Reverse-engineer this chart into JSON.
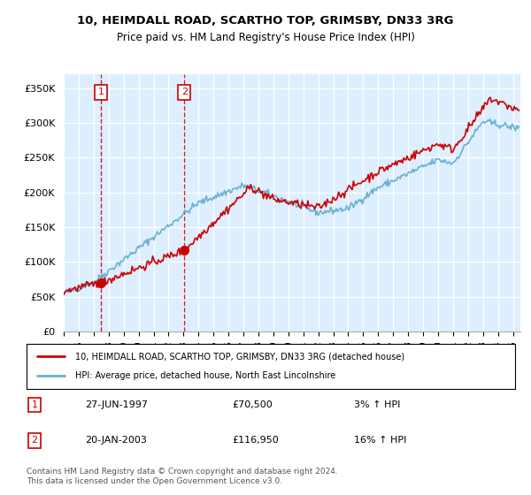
{
  "title_line1": "10, HEIMDALL ROAD, SCARTHO TOP, GRIMSBY, DN33 3RG",
  "title_line2": "Price paid vs. HM Land Registry's House Price Index (HPI)",
  "ylabel_ticks": [
    "£0",
    "£50K",
    "£100K",
    "£150K",
    "£200K",
    "£250K",
    "£300K",
    "£350K"
  ],
  "ytick_values": [
    0,
    50000,
    100000,
    150000,
    200000,
    250000,
    300000,
    350000
  ],
  "ylim": [
    0,
    370000
  ],
  "xlim_start": 1995.0,
  "xlim_end": 2025.5,
  "purchase1_x": 1997.49,
  "purchase1_y": 70500,
  "purchase2_x": 2003.05,
  "purchase2_y": 116950,
  "purchase1_date": "27-JUN-1997",
  "purchase1_price": "£70,500",
  "purchase1_hpi": "3% ↑ HPI",
  "purchase2_date": "20-JAN-2003",
  "purchase2_price": "£116,950",
  "purchase2_hpi": "16% ↑ HPI",
  "hpi_color": "#6ab0d4",
  "price_color": "#cc0000",
  "plot_bg_color": "#ddeeff",
  "legend_line1": "10, HEIMDALL ROAD, SCARTHO TOP, GRIMSBY, DN33 3RG (detached house)",
  "legend_line2": "HPI: Average price, detached house, North East Lincolnshire",
  "footnote": "Contains HM Land Registry data © Crown copyright and database right 2024.\nThis data is licensed under the Open Government Licence v3.0.",
  "xtick_years": [
    1995,
    1996,
    1997,
    1998,
    1999,
    2000,
    2001,
    2002,
    2003,
    2004,
    2005,
    2006,
    2007,
    2008,
    2009,
    2010,
    2011,
    2012,
    2013,
    2014,
    2015,
    2016,
    2017,
    2018,
    2019,
    2020,
    2021,
    2022,
    2023,
    2024,
    2025
  ]
}
